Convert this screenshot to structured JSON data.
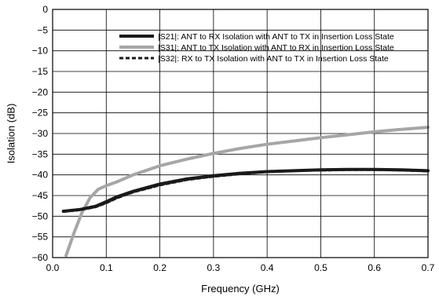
{
  "chart_data": {
    "type": "line",
    "title": "",
    "xlabel": "Frequency (GHz)",
    "ylabel": "Isolation (dB)",
    "xlim": [
      0.0,
      0.7
    ],
    "ylim": [
      -60,
      0
    ],
    "xticks": [
      0.0,
      0.1,
      0.2,
      0.3,
      0.4,
      0.5,
      0.6,
      0.7
    ],
    "xtick_labels": [
      "0.0",
      "0.1",
      "0.2",
      "0.3",
      "0.4",
      "0.5",
      "0.6",
      "0.7"
    ],
    "yticks": [
      0,
      -5,
      -10,
      -15,
      -20,
      -25,
      -30,
      -35,
      -40,
      -45,
      -50,
      -55,
      -60
    ],
    "ytick_labels": [
      "0",
      "−5",
      "−10",
      "−15",
      "−20",
      "−25",
      "−30",
      "−35",
      "−40",
      "−45",
      "−50",
      "−55",
      "−60"
    ],
    "grid": true,
    "legend_position": "top-right",
    "series": [
      {
        "name": "|S21|: ANT to RX Isolation with ANT to TX in Insertion Loss State",
        "color": "#1a1a1a",
        "style": "solid",
        "x": [
          0.02,
          0.05,
          0.08,
          0.1,
          0.12,
          0.15,
          0.2,
          0.25,
          0.3,
          0.35,
          0.4,
          0.45,
          0.5,
          0.55,
          0.6,
          0.65,
          0.7
        ],
        "y": [
          -48.8,
          -48.4,
          -47.6,
          -46.5,
          -45.3,
          -44.0,
          -42.2,
          -41.0,
          -40.2,
          -39.6,
          -39.2,
          -39.0,
          -38.8,
          -38.7,
          -38.7,
          -38.8,
          -39.0
        ]
      },
      {
        "name": "|S31|: ANT to TX Isolation with ANT to RX in Insertion Loss State",
        "color": "#a6a6a6",
        "style": "solid",
        "x": [
          0.025,
          0.04,
          0.055,
          0.07,
          0.085,
          0.1,
          0.12,
          0.15,
          0.2,
          0.25,
          0.3,
          0.35,
          0.4,
          0.45,
          0.5,
          0.55,
          0.6,
          0.65,
          0.7
        ],
        "y": [
          -59.5,
          -54.0,
          -49.0,
          -45.5,
          -43.5,
          -42.6,
          -41.7,
          -40.0,
          -37.8,
          -36.2,
          -34.8,
          -33.6,
          -32.6,
          -31.8,
          -31.0,
          -30.3,
          -29.6,
          -29.0,
          -28.5
        ]
      },
      {
        "name": "|S32|: RX to TX Isolation with ANT to TX in Insertion Loss State",
        "color": "#1a1a1a",
        "style": "dashed",
        "x": [
          0.02,
          0.05,
          0.08,
          0.1,
          0.12,
          0.15,
          0.2,
          0.25,
          0.3,
          0.35,
          0.4,
          0.45,
          0.5,
          0.55,
          0.6,
          0.65,
          0.7
        ],
        "y": [
          -48.9,
          -48.5,
          -47.8,
          -46.8,
          -45.6,
          -44.2,
          -42.5,
          -41.2,
          -40.4,
          -39.8,
          -39.3,
          -39.0,
          -38.9,
          -38.8,
          -38.8,
          -38.9,
          -39.1
        ]
      }
    ]
  }
}
